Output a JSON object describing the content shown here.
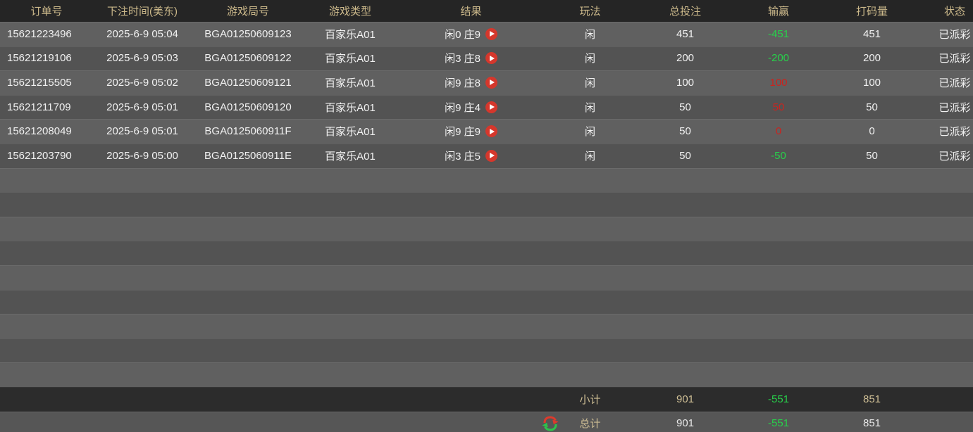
{
  "table": {
    "columns": [
      {
        "key": "order_id",
        "label": "订单号"
      },
      {
        "key": "bet_time",
        "label": "下注时间(美东)"
      },
      {
        "key": "round_id",
        "label": "游戏局号"
      },
      {
        "key": "game_type",
        "label": "游戏类型"
      },
      {
        "key": "result",
        "label": "结果"
      },
      {
        "key": "play",
        "label": "玩法"
      },
      {
        "key": "total_bet",
        "label": "总投注"
      },
      {
        "key": "win_loss",
        "label": "输赢"
      },
      {
        "key": "wager",
        "label": "打码量"
      },
      {
        "key": "status",
        "label": "状态"
      }
    ],
    "rows": [
      {
        "order_id": "15621223496",
        "bet_time": "2025-6-9 05:04",
        "round_id": "BGA01250609123",
        "game_type": "百家乐A01",
        "result": "闲0 庄9",
        "has_replay": true,
        "play": "闲",
        "total_bet": "451",
        "win_loss": "-451",
        "win_loss_color": "green",
        "wager": "451",
        "status": "已派彩"
      },
      {
        "order_id": "15621219106",
        "bet_time": "2025-6-9 05:03",
        "round_id": "BGA01250609122",
        "game_type": "百家乐A01",
        "result": "闲3 庄8",
        "has_replay": true,
        "play": "闲",
        "total_bet": "200",
        "win_loss": "-200",
        "win_loss_color": "green",
        "wager": "200",
        "status": "已派彩"
      },
      {
        "order_id": "15621215505",
        "bet_time": "2025-6-9 05:02",
        "round_id": "BGA01250609121",
        "game_type": "百家乐A01",
        "result": "闲9 庄8",
        "has_replay": true,
        "play": "闲",
        "total_bet": "100",
        "win_loss": "100",
        "win_loss_color": "red",
        "wager": "100",
        "status": "已派彩"
      },
      {
        "order_id": "15621211709",
        "bet_time": "2025-6-9 05:01",
        "round_id": "BGA01250609120",
        "game_type": "百家乐A01",
        "result": "闲9 庄4",
        "has_replay": true,
        "play": "闲",
        "total_bet": "50",
        "win_loss": "50",
        "win_loss_color": "red",
        "wager": "50",
        "status": "已派彩"
      },
      {
        "order_id": "15621208049",
        "bet_time": "2025-6-9 05:01",
        "round_id": "BGA0125060911F",
        "game_type": "百家乐A01",
        "result": "闲9 庄9",
        "has_replay": true,
        "play": "闲",
        "total_bet": "50",
        "win_loss": "0",
        "win_loss_color": "red",
        "wager": "0",
        "status": "已派彩"
      },
      {
        "order_id": "15621203790",
        "bet_time": "2025-6-9 05:00",
        "round_id": "BGA0125060911E",
        "game_type": "百家乐A01",
        "result": "闲3 庄5",
        "has_replay": true,
        "play": "闲",
        "total_bet": "50",
        "win_loss": "-50",
        "win_loss_color": "green",
        "wager": "50",
        "status": "已派彩"
      }
    ],
    "empty_row_count": 9,
    "footer": {
      "subtotal": {
        "label": "小计",
        "total_bet": "901",
        "win_loss": "-551",
        "win_loss_color": "green",
        "wager": "851"
      },
      "total": {
        "label": "总计",
        "total_bet": "901",
        "win_loss": "-551",
        "win_loss_color": "green",
        "wager": "851"
      }
    }
  },
  "icons": {
    "replay_button": "play-icon",
    "refresh": "refresh-icon"
  },
  "colors": {
    "header_bg": "#252525",
    "header_text": "#ccb98b",
    "row_light": "#606060",
    "row_dark": "#535353",
    "win_green": "#27d14a",
    "win_red": "#c9241f",
    "play_icon_red": "#d5372c",
    "subtotal_bg": "#2c2c2c",
    "subtotal_text": "#cfbf95",
    "total_bg": "#565656"
  }
}
